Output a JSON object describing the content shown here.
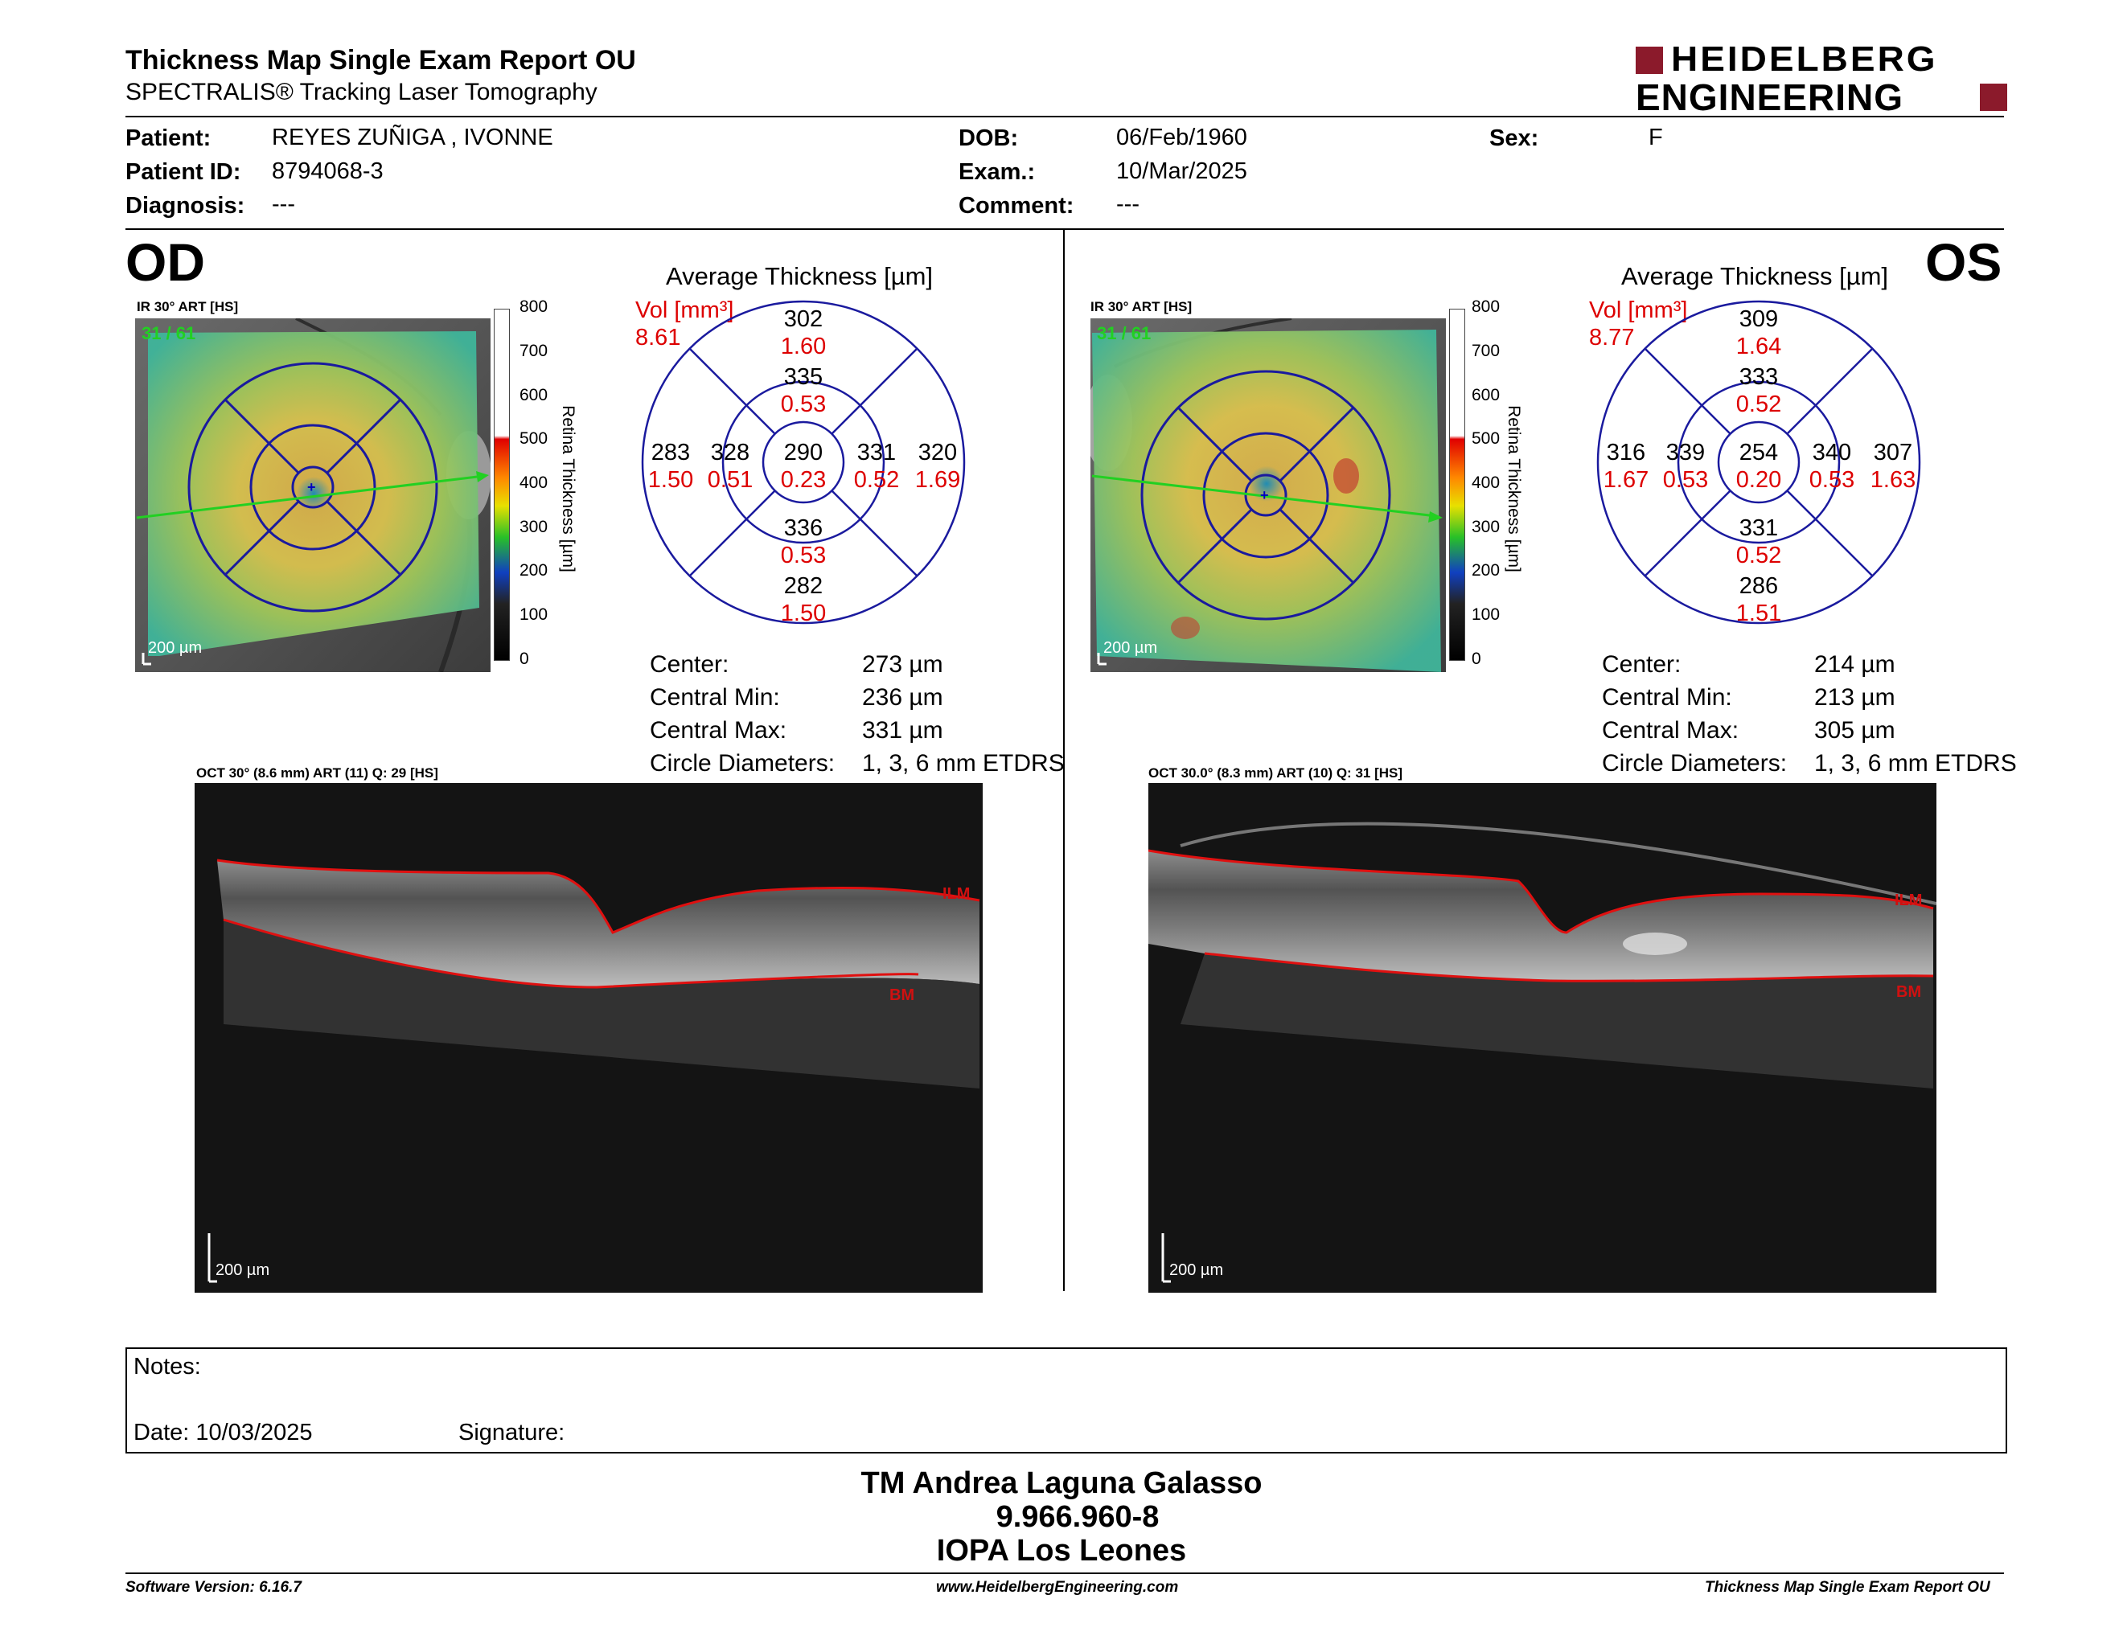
{
  "header": {
    "title": "Thickness Map Single Exam Report OU",
    "subtitle": "SPECTRALIS® Tracking Laser Tomography",
    "logo_line1": "HEIDELBERG",
    "logo_line2": "ENGINEERING",
    "brand_color": "#8b1a2b"
  },
  "patient": {
    "patient_label": "Patient:",
    "patient_value": "REYES ZUÑIGA , IVONNE",
    "id_label": "Patient ID:",
    "id_value": "8794068-3",
    "diagnosis_label": "Diagnosis:",
    "diagnosis_value": "---",
    "dob_label": "DOB:",
    "dob_value": "06/Feb/1960",
    "exam_label": "Exam.:",
    "exam_value": "10/Mar/2025",
    "comment_label": "Comment:",
    "comment_value": "---",
    "sex_label": "Sex:",
    "sex_value": "F"
  },
  "od": {
    "eye": "OD",
    "ir_label": "IR 30° ART [HS]",
    "frame_count": "31 / 61",
    "scale": "200 µm",
    "colorbar_ticks": [
      "800",
      "700",
      "600",
      "500",
      "400",
      "300",
      "200",
      "100",
      "0"
    ],
    "colorbar_label": "Retina  Thickness [µm]",
    "avg_title": "Average Thickness [µm]",
    "vol_label": "Vol [mm³]",
    "vol_value": "8.61",
    "sectors": {
      "outer_top": {
        "t": "302",
        "v": "1.60"
      },
      "inner_top": {
        "t": "335",
        "v": "0.53"
      },
      "outer_left": {
        "t": "283",
        "v": "1.50"
      },
      "inner_left": {
        "t": "328",
        "v": "0.51"
      },
      "center": {
        "t": "290",
        "v": "0.23"
      },
      "inner_right": {
        "t": "331",
        "v": "0.52"
      },
      "outer_right": {
        "t": "320",
        "v": "1.69"
      },
      "inner_bottom": {
        "t": "336",
        "v": "0.53"
      },
      "outer_bottom": {
        "t": "282",
        "v": "1.50"
      }
    },
    "stats": {
      "center_label": "Center:",
      "center_value": "273 µm",
      "min_label": "Central Min:",
      "min_value": "236 µm",
      "max_label": "Central Max:",
      "max_value": "331 µm",
      "circ_label": "Circle Diameters:",
      "circ_value": "1, 3, 6 mm ETDRS"
    },
    "oct_label": "OCT 30° (8.6 mm) ART (11) Q: 29 [HS]",
    "ilm": "ILM",
    "bm": "BM",
    "oct_scale": "200 µm"
  },
  "os": {
    "eye": "OS",
    "ir_label": "IR 30° ART [HS]",
    "frame_count": "31 / 61",
    "scale": "200 µm",
    "colorbar_ticks": [
      "800",
      "700",
      "600",
      "500",
      "400",
      "300",
      "200",
      "100",
      "0"
    ],
    "colorbar_label": "Retina  Thickness [µm]",
    "avg_title": "Average Thickness [µm]",
    "vol_label": "Vol [mm³]",
    "vol_value": "8.77",
    "sectors": {
      "outer_top": {
        "t": "309",
        "v": "1.64"
      },
      "inner_top": {
        "t": "333",
        "v": "0.52"
      },
      "outer_left": {
        "t": "316",
        "v": "1.67"
      },
      "inner_left": {
        "t": "339",
        "v": "0.53"
      },
      "center": {
        "t": "254",
        "v": "0.20"
      },
      "inner_right": {
        "t": "340",
        "v": "0.53"
      },
      "outer_right": {
        "t": "307",
        "v": "1.63"
      },
      "inner_bottom": {
        "t": "331",
        "v": "0.52"
      },
      "outer_bottom": {
        "t": "286",
        "v": "1.51"
      }
    },
    "stats": {
      "center_label": "Center:",
      "center_value": "214 µm",
      "min_label": "Central Min:",
      "min_value": "213 µm",
      "max_label": "Central Max:",
      "max_value": "305 µm",
      "circ_label": "Circle Diameters:",
      "circ_value": "1, 3, 6 mm ETDRS"
    },
    "oct_label": "OCT 30.0° (8.3 mm) ART (10) Q: 31 [HS]",
    "ilm": "ILM",
    "bm": "BM",
    "oct_scale": "200 µm"
  },
  "notes": {
    "notes_label": "Notes:",
    "date_label": "Date: 10/03/2025",
    "signature_label": "Signature:"
  },
  "signatory": {
    "name": "TM Andrea Laguna Galasso",
    "rut": "9.966.960-8",
    "institution": "IOPA Los Leones"
  },
  "footer": {
    "software": "Software Version: 6.16.7",
    "website": "www.HeidelbergEngineering.com",
    "report": "Thickness Map Single Exam Report OU"
  }
}
